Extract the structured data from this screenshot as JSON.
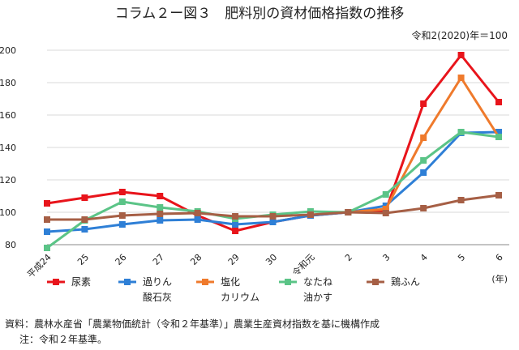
{
  "chart_data": {
    "type": "line",
    "title": "コラム２ー図３　肥料別の資材価格指数の推移",
    "subtitle": "令和2(2020)年＝100",
    "xlabel": "(年)",
    "ylabel": "",
    "categories": [
      "平成24",
      "25",
      "26",
      "27",
      "28",
      "29",
      "30",
      "令和元",
      "2",
      "3",
      "4",
      "5",
      "6"
    ],
    "ylim": [
      80,
      200
    ],
    "yticks": [
      80,
      100,
      120,
      140,
      160,
      180,
      200
    ],
    "grid": "horizontal",
    "series": [
      {
        "name": "尿素",
        "label_lines": [
          "尿素"
        ],
        "color": "#e8141b",
        "values": [
          105.5,
          109,
          112.5,
          110,
          98,
          88.5,
          94,
          98,
          100,
          101,
          167,
          197,
          168
        ]
      },
      {
        "name": "過りん酸石灰",
        "label_lines": [
          "過りん",
          "酸石灰"
        ],
        "color": "#2e7fd6",
        "values": [
          88,
          89.5,
          92.5,
          95,
          95.5,
          92.5,
          94,
          98,
          100,
          104,
          124.5,
          149,
          149.5
        ]
      },
      {
        "name": "塩化カリウム",
        "label_lines": [
          "塩化",
          "カリウム"
        ],
        "color": "#ef7a2c",
        "values": [
          null,
          null,
          null,
          null,
          null,
          null,
          null,
          null,
          100,
          102,
          146,
          183,
          146.5
        ]
      },
      {
        "name": "なたね油かす",
        "label_lines": [
          "なたね",
          "油かす"
        ],
        "color": "#5bc487",
        "values": [
          78,
          95,
          106.5,
          103,
          100.5,
          96,
          98.5,
          100.5,
          100,
          111,
          132,
          149.5,
          146.5
        ]
      },
      {
        "name": "鶏ふん",
        "label_lines": [
          "鶏ふん"
        ],
        "color": "#a65f45",
        "values": [
          95.5,
          95.5,
          98,
          99,
          99.5,
          97.5,
          97.5,
          98.5,
          100,
          99.5,
          102.5,
          107.5,
          110.5
        ]
      }
    ]
  },
  "footer": {
    "source": "資料：農林水産省「農業物価統計（令和２年基準）」農業生産資材指数を基に機構作成",
    "note": "注：令和２年基準。"
  }
}
